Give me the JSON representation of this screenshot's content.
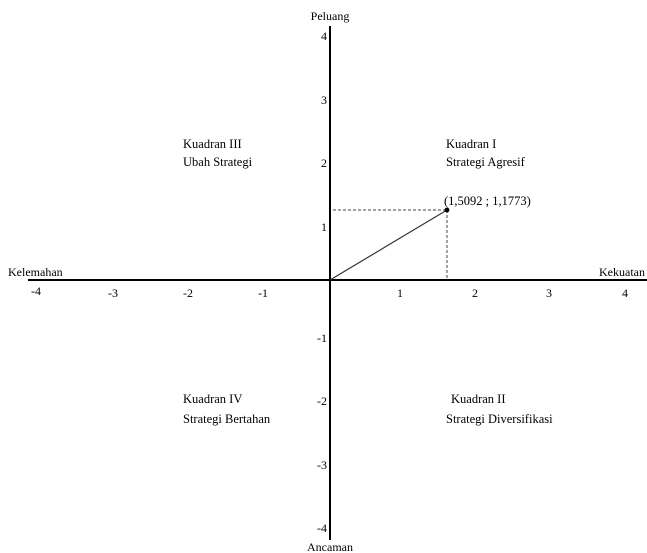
{
  "axes": {
    "top_label": "Peluang",
    "bottom_label": "Ancaman",
    "left_label": "Kelemahan",
    "right_label": "Kekuatan",
    "x_range": [
      -4,
      4
    ],
    "y_range": [
      -4,
      4
    ],
    "x_ticks": [
      "-4",
      "-3",
      "-2",
      "-1",
      "1",
      "2",
      "3",
      "4"
    ],
    "y_ticks": [
      "4",
      "3",
      "2",
      "1",
      "-1",
      "-2",
      "-3",
      "-4"
    ]
  },
  "quadrants": {
    "q1": {
      "name": "Kuadran I",
      "strategy": "Strategi Agresif"
    },
    "q2": {
      "name": "Kuadran II",
      "strategy": "Strategi Diversifikasi"
    },
    "q3": {
      "name": "Kuadran III",
      "strategy": "Ubah Strategi"
    },
    "q4": {
      "name": "Kuadran IV",
      "strategy": "Strategi Bertahan"
    }
  },
  "point": {
    "label": "(1,5092 ; 1,1773)",
    "x": 1.5092,
    "y": 1.1773
  },
  "colors": {
    "axis": "#000000",
    "vector": "#333333",
    "guide": "#444444",
    "text": "#000000"
  }
}
